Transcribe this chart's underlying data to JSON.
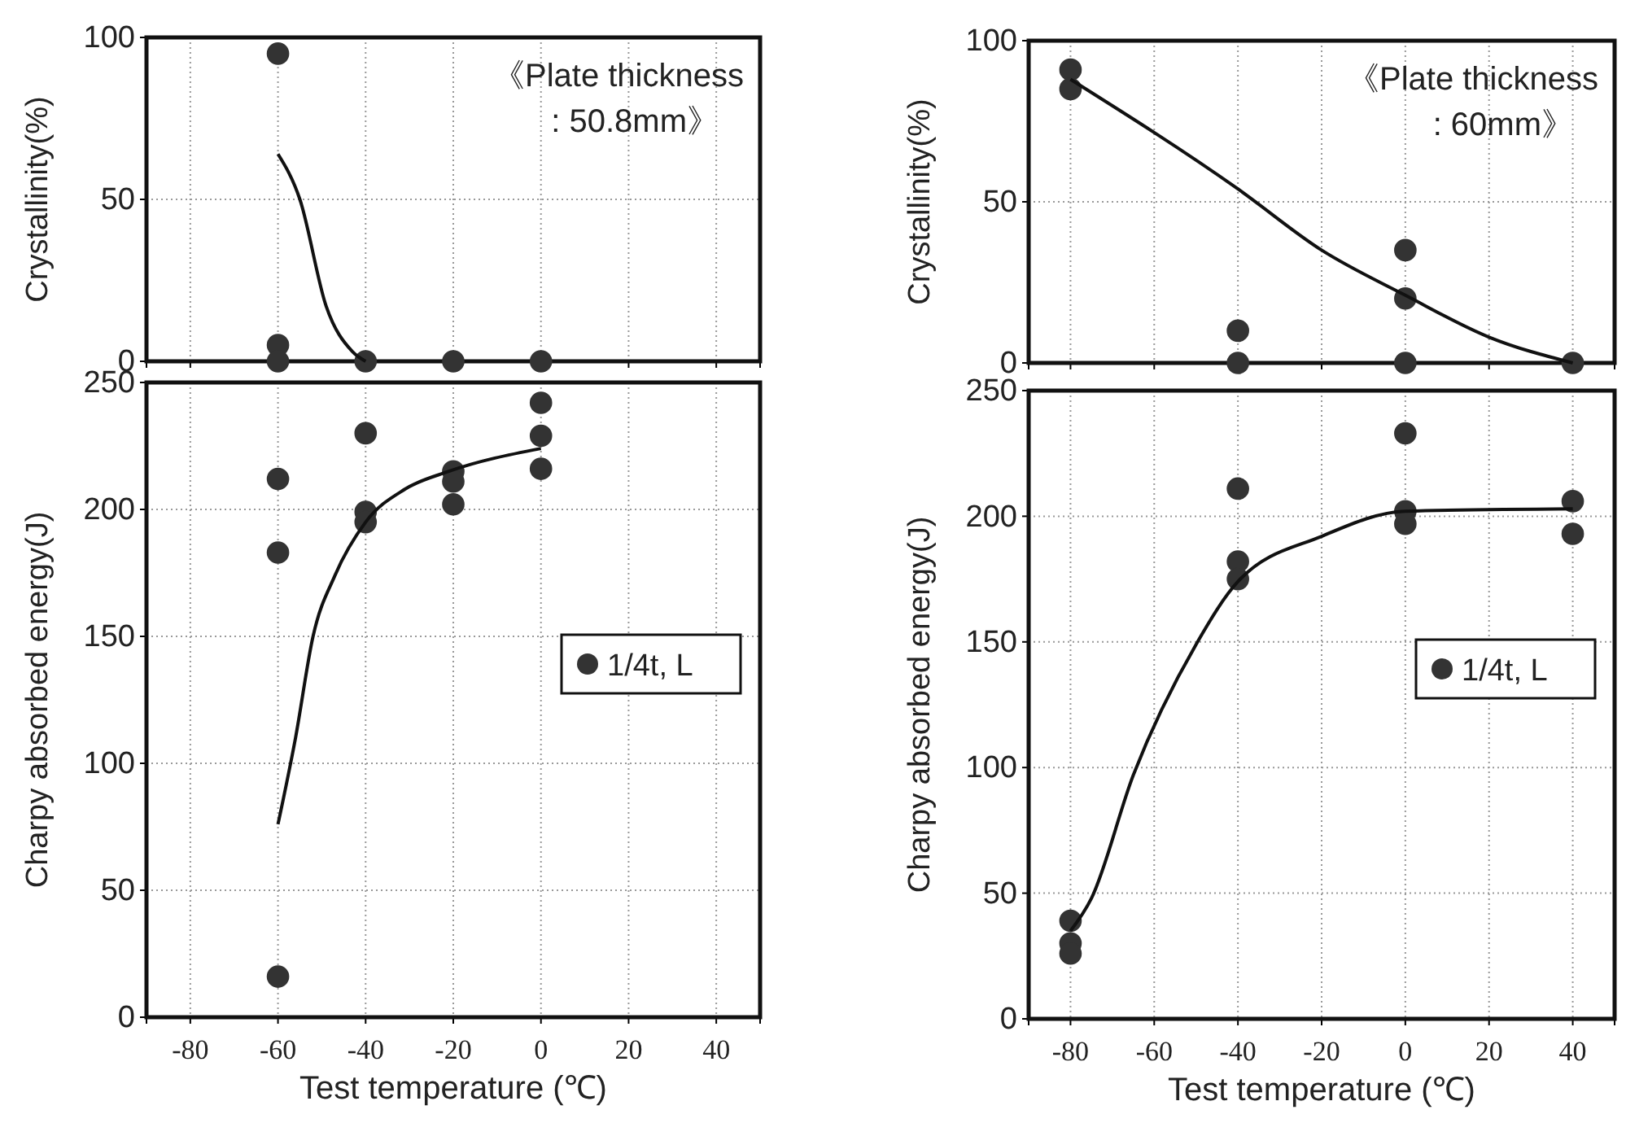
{
  "chart_data": [
    {
      "type": "scatter",
      "ylabel": "Crystallinity(%)",
      "xlim": [
        -90,
        50
      ],
      "ylim": [
        0,
        100
      ],
      "xticks": [
        -80,
        -60,
        -40,
        -20,
        0,
        20,
        40
      ],
      "yticks": [
        0,
        50,
        100
      ],
      "tick_labels": "y",
      "grid": true,
      "marker": "circle",
      "legend": false,
      "annotations": [
        "《Plate thickness",
        ": 50.8mm》"
      ],
      "series": [
        {
          "color": "#333333",
          "x": [
            -60,
            -60,
            -60,
            -40,
            -20,
            0
          ],
          "values": [
            95,
            5,
            0,
            0,
            0,
            0
          ]
        },
        {
          "type": "line",
          "marker": "none",
          "color": "#111111",
          "line_style": "solid",
          "x": [
            -60,
            -55,
            -49,
            -43,
            -40
          ],
          "values": [
            64,
            50,
            17,
            3,
            0
          ]
        }
      ]
    },
    {
      "type": "scatter",
      "xlabel": "Test temperature (℃)",
      "ylabel": "Charpy absorbed energy(J)",
      "xlim": [
        -90,
        50
      ],
      "ylim": [
        0,
        250
      ],
      "xticks": [
        -80,
        -60,
        -40,
        -20,
        0,
        20,
        40
      ],
      "yticks": [
        0,
        50,
        100,
        150,
        200,
        250
      ],
      "grid": true,
      "marker": "circle",
      "legend": "right",
      "series": [
        {
          "name": "1/4t, L",
          "color": "#333333",
          "x": [
            -60,
            -60,
            -60,
            -40,
            -40,
            -40,
            -20,
            -20,
            -20,
            0,
            0,
            0
          ],
          "values": [
            212,
            183,
            16,
            230,
            199,
            195,
            215,
            211,
            202,
            242,
            229,
            216
          ]
        },
        {
          "type": "line",
          "marker": "none",
          "color": "#111111",
          "line_style": "solid",
          "x": [
            -60,
            -56,
            -52,
            -47,
            -40,
            -31,
            -21,
            0
          ],
          "values": [
            76,
            110,
            150,
            174,
            195,
            208,
            215,
            224
          ]
        }
      ]
    },
    {
      "type": "scatter",
      "ylabel": "Crystallinity(%)",
      "xlim": [
        -90,
        50
      ],
      "ylim": [
        0,
        100
      ],
      "xticks": [
        -80,
        -60,
        -40,
        -20,
        0,
        20,
        40
      ],
      "yticks": [
        0,
        50,
        100
      ],
      "tick_labels": "y",
      "grid": true,
      "marker": "circle",
      "legend": false,
      "annotations": [
        "《Plate thickness",
        ": 60mm》"
      ],
      "series": [
        {
          "color": "#333333",
          "x": [
            -80,
            -80,
            -40,
            -40,
            0,
            0,
            0,
            40
          ],
          "values": [
            91,
            85,
            10,
            0,
            35,
            20,
            0,
            0
          ]
        },
        {
          "type": "line",
          "marker": "none",
          "color": "#111111",
          "line_style": "solid",
          "x": [
            -80,
            -40,
            -20,
            0,
            20,
            40
          ],
          "values": [
            88,
            54,
            35,
            21,
            8,
            0
          ]
        }
      ]
    },
    {
      "type": "scatter",
      "xlabel": "Test temperature (℃)",
      "ylabel": "Charpy absorbed energy(J)",
      "xlim": [
        -90,
        50
      ],
      "ylim": [
        0,
        250
      ],
      "xticks": [
        -80,
        -60,
        -40,
        -20,
        0,
        20,
        40
      ],
      "yticks": [
        0,
        50,
        100,
        150,
        200,
        250
      ],
      "grid": true,
      "marker": "circle",
      "legend": "right",
      "series": [
        {
          "name": "1/4t, L",
          "color": "#333333",
          "x": [
            -80,
            -80,
            -80,
            -40,
            -40,
            -40,
            0,
            0,
            0,
            40,
            40
          ],
          "values": [
            39,
            30,
            26,
            211,
            182,
            175,
            233,
            202,
            197,
            206,
            193
          ]
        },
        {
          "type": "line",
          "marker": "none",
          "color": "#111111",
          "line_style": "solid",
          "x": [
            -80,
            -75,
            -65,
            -50,
            -40,
            -20,
            0,
            40
          ],
          "values": [
            35,
            48,
            97,
            149,
            174,
            192,
            202,
            203
          ]
        }
      ]
    }
  ]
}
